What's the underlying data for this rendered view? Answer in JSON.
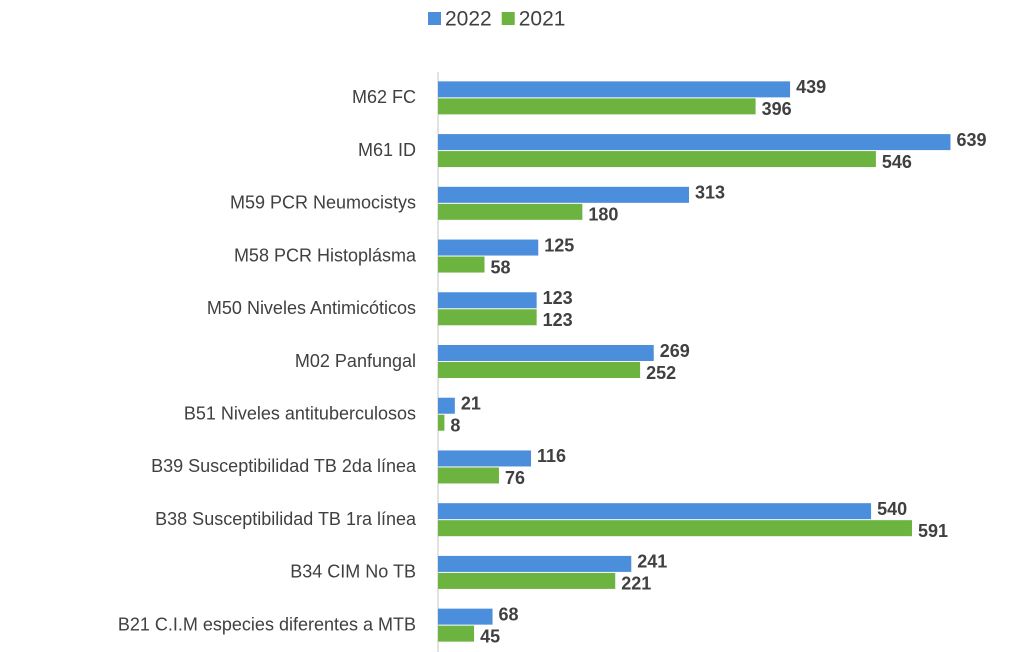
{
  "chart_data": {
    "type": "hbar",
    "categories": [
      "M62 FC",
      "M61 ID",
      "M59 PCR Neumocistys",
      "M58 PCR Histoplásma",
      "M50 Niveles Antimicóticos",
      "M02 Panfungal",
      "B51 Niveles antituberculosos",
      "B39 Susceptibilidad TB 2da línea",
      "B38 Susceptibilidad TB 1ra línea",
      "B34 CIM No TB",
      "B21 C.I.M especies diferentes a MTB"
    ],
    "series": [
      {
        "name": "2022",
        "color": "#4a8edc",
        "values": [
          439,
          639,
          313,
          125,
          123,
          269,
          21,
          116,
          540,
          241,
          68
        ]
      },
      {
        "name": "2021",
        "color": "#6cb33f",
        "values": [
          396,
          546,
          180,
          58,
          123,
          252,
          8,
          76,
          591,
          221,
          45
        ]
      }
    ],
    "legend": "top"
  }
}
